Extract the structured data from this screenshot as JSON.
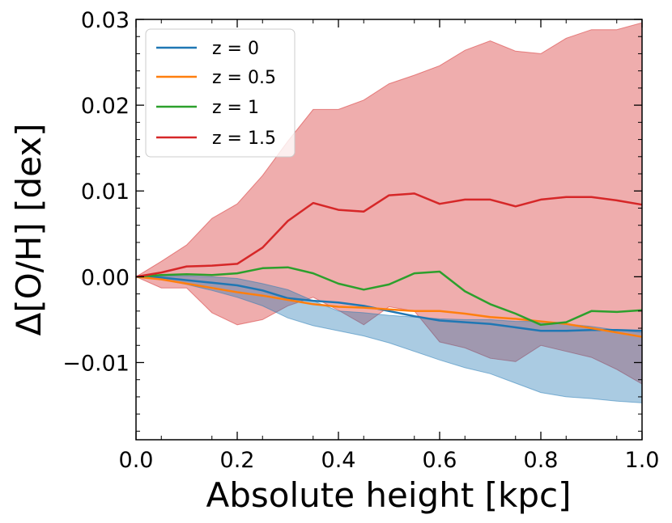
{
  "chart_data": {
    "type": "line",
    "xlabel": "Absolute height [kpc]",
    "ylabel": "Δ[O/H] [dex]",
    "xlim": [
      0.0,
      1.0
    ],
    "ylim": [
      -0.019,
      0.03
    ],
    "x_ticks": [
      0.0,
      0.2,
      0.4,
      0.6,
      0.8,
      1.0
    ],
    "x_tick_labels": [
      "0.0",
      "0.2",
      "0.4",
      "0.6",
      "0.8",
      "1.0"
    ],
    "y_ticks": [
      -0.01,
      0.0,
      0.01,
      0.02,
      0.03
    ],
    "y_tick_labels": [
      "−0.01",
      "0.00",
      "0.01",
      "0.02",
      "0.03"
    ],
    "legend_position": "top-left",
    "x": [
      0.0,
      0.05,
      0.1,
      0.15,
      0.2,
      0.25,
      0.3,
      0.35,
      0.4,
      0.45,
      0.5,
      0.55,
      0.6,
      0.65,
      0.7,
      0.75,
      0.8,
      0.85,
      0.9,
      0.95,
      1.0
    ],
    "series": [
      {
        "name": "z = 0",
        "color": "#1f77b4",
        "values": [
          0.0,
          -0.0001,
          -0.0004,
          -0.0007,
          -0.001,
          -0.0016,
          -0.0025,
          -0.0028,
          -0.003,
          -0.0034,
          -0.004,
          -0.0046,
          -0.0051,
          -0.0053,
          -0.0055,
          -0.0059,
          -0.0063,
          -0.0063,
          -0.0062,
          -0.0062,
          -0.0063
        ],
        "lower": [
          0.0,
          -0.0003,
          -0.0009,
          -0.0016,
          -0.0024,
          -0.0034,
          -0.0048,
          -0.0057,
          -0.0063,
          -0.0069,
          -0.0077,
          -0.0087,
          -0.0097,
          -0.0106,
          -0.0113,
          -0.0124,
          -0.0135,
          -0.014,
          -0.0142,
          -0.0145,
          -0.0147
        ],
        "upper": [
          0.0,
          0.0001,
          0.0001,
          0.0,
          -0.0002,
          -0.0008,
          -0.0015,
          -0.0028,
          -0.004,
          -0.0042,
          -0.0045,
          -0.0047,
          -0.0049,
          -0.005,
          -0.005,
          -0.0052,
          -0.0052,
          -0.0055,
          -0.0058,
          -0.0062,
          -0.0065
        ]
      },
      {
        "name": "z = 0.5",
        "color": "#ff7f0e",
        "values": [
          0.0,
          -0.0003,
          -0.0008,
          -0.0013,
          -0.0018,
          -0.0022,
          -0.0027,
          -0.0032,
          -0.0035,
          -0.0036,
          -0.0038,
          -0.004,
          -0.004,
          -0.0043,
          -0.0047,
          -0.0049,
          -0.0052,
          -0.0055,
          -0.006,
          -0.0065,
          -0.007
        ]
      },
      {
        "name": "z = 1",
        "color": "#2ca02c",
        "values": [
          0.0,
          0.0002,
          0.0003,
          0.0002,
          0.0004,
          0.001,
          0.0011,
          0.0004,
          -0.0008,
          -0.0015,
          -0.0009,
          0.0004,
          0.0006,
          -0.0017,
          -0.0032,
          -0.0043,
          -0.0056,
          -0.0053,
          -0.004,
          -0.0041,
          -0.0039
        ]
      },
      {
        "name": "z = 1.5",
        "color": "#d62728",
        "values": [
          0.0,
          0.0005,
          0.0012,
          0.0013,
          0.0015,
          0.0034,
          0.0065,
          0.0086,
          0.0078,
          0.0076,
          0.0095,
          0.0097,
          0.0085,
          0.009,
          0.009,
          0.0082,
          0.009,
          0.0093,
          0.0093,
          0.0089,
          0.0084
        ],
        "lower": [
          0.0,
          -0.0013,
          -0.0013,
          -0.0042,
          -0.0056,
          -0.005,
          -0.0034,
          -0.0024,
          -0.0039,
          -0.0056,
          -0.0035,
          -0.004,
          -0.0076,
          -0.0083,
          -0.0095,
          -0.0099,
          -0.008,
          -0.0087,
          -0.0094,
          -0.0108,
          -0.0125
        ],
        "upper": [
          0.0,
          0.0018,
          0.0037,
          0.0068,
          0.0085,
          0.0118,
          0.0158,
          0.0195,
          0.0195,
          0.0206,
          0.0225,
          0.0235,
          0.0246,
          0.0264,
          0.0275,
          0.0263,
          0.026,
          0.0278,
          0.0288,
          0.0288,
          0.0296
        ]
      }
    ]
  }
}
